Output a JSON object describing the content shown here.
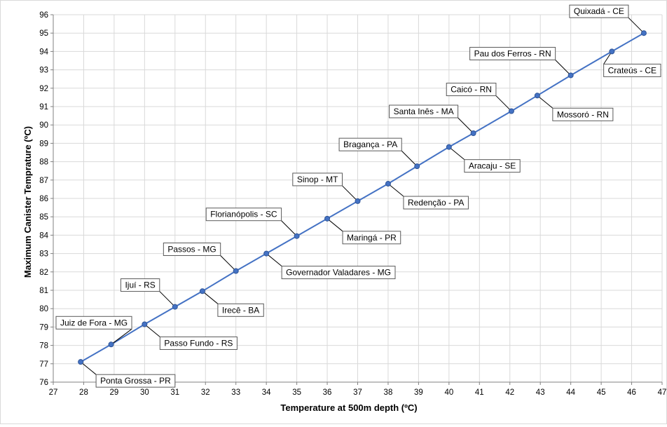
{
  "chart_data": {
    "type": "line",
    "xlabel": "Temperature at 500m depth (ºC)",
    "ylabel": "Maximum Canister Temprature (ºC)",
    "xlim": [
      27,
      47
    ],
    "ylim": [
      76,
      96
    ],
    "x_ticks": [
      "27",
      "28",
      "29",
      "30",
      "31",
      "32",
      "33",
      "34",
      "35",
      "36",
      "37",
      "38",
      "39",
      "40",
      "41",
      "42",
      "43",
      "44",
      "45",
      "46",
      "47"
    ],
    "y_ticks": [
      "76",
      "77",
      "78",
      "79",
      "80",
      "81",
      "82",
      "83",
      "84",
      "85",
      "86",
      "87",
      "88",
      "89",
      "90",
      "91",
      "92",
      "93",
      "94",
      "95",
      "96"
    ],
    "grid": true,
    "line_color": "#4472c4",
    "marker_color": "#4472c4",
    "points": [
      {
        "x": 27.9,
        "y": 77.1,
        "label": "Ponta Grossa - PR",
        "side": "below"
      },
      {
        "x": 28.9,
        "y": 78.05,
        "label": "Juiz de Fora - MG",
        "side": "above"
      },
      {
        "x": 30.0,
        "y": 79.15,
        "label": "Passo Fundo - RS",
        "side": "below"
      },
      {
        "x": 31.0,
        "y": 80.1,
        "label": "Ijuí - RS",
        "side": "above"
      },
      {
        "x": 31.9,
        "y": 80.95,
        "label": "Irecê - BA",
        "side": "below"
      },
      {
        "x": 33.0,
        "y": 82.05,
        "label": "Passos - MG",
        "side": "above"
      },
      {
        "x": 34.0,
        "y": 83.0,
        "label": "Governador Valadares - MG",
        "side": "below"
      },
      {
        "x": 35.0,
        "y": 83.95,
        "label": "Florianópolis - SC",
        "side": "above"
      },
      {
        "x": 36.0,
        "y": 84.9,
        "label": "Maringá - PR",
        "side": "below"
      },
      {
        "x": 37.0,
        "y": 85.85,
        "label": "Sinop - MT",
        "side": "above"
      },
      {
        "x": 38.0,
        "y": 86.8,
        "label": "Redenção - PA",
        "side": "below"
      },
      {
        "x": 38.95,
        "y": 87.75,
        "label": "Bragança - PA",
        "side": "above"
      },
      {
        "x": 40.0,
        "y": 88.8,
        "label": "Aracaju - SE",
        "side": "below"
      },
      {
        "x": 40.8,
        "y": 89.55,
        "label": "Santa Inês - MA",
        "side": "above"
      },
      {
        "x": 42.05,
        "y": 90.75,
        "label": "Caicó - RN",
        "side": "above"
      },
      {
        "x": 42.9,
        "y": 91.6,
        "label": "Mossoró - RN",
        "side": "below"
      },
      {
        "x": 44.0,
        "y": 92.7,
        "label": "Pau dos Ferros - RN",
        "side": "above"
      },
      {
        "x": 45.35,
        "y": 94.0,
        "label": "Crateús - CE",
        "side": "below"
      },
      {
        "x": 46.4,
        "y": 95.0,
        "label": "Quixadá - CE",
        "side": "above"
      }
    ]
  }
}
